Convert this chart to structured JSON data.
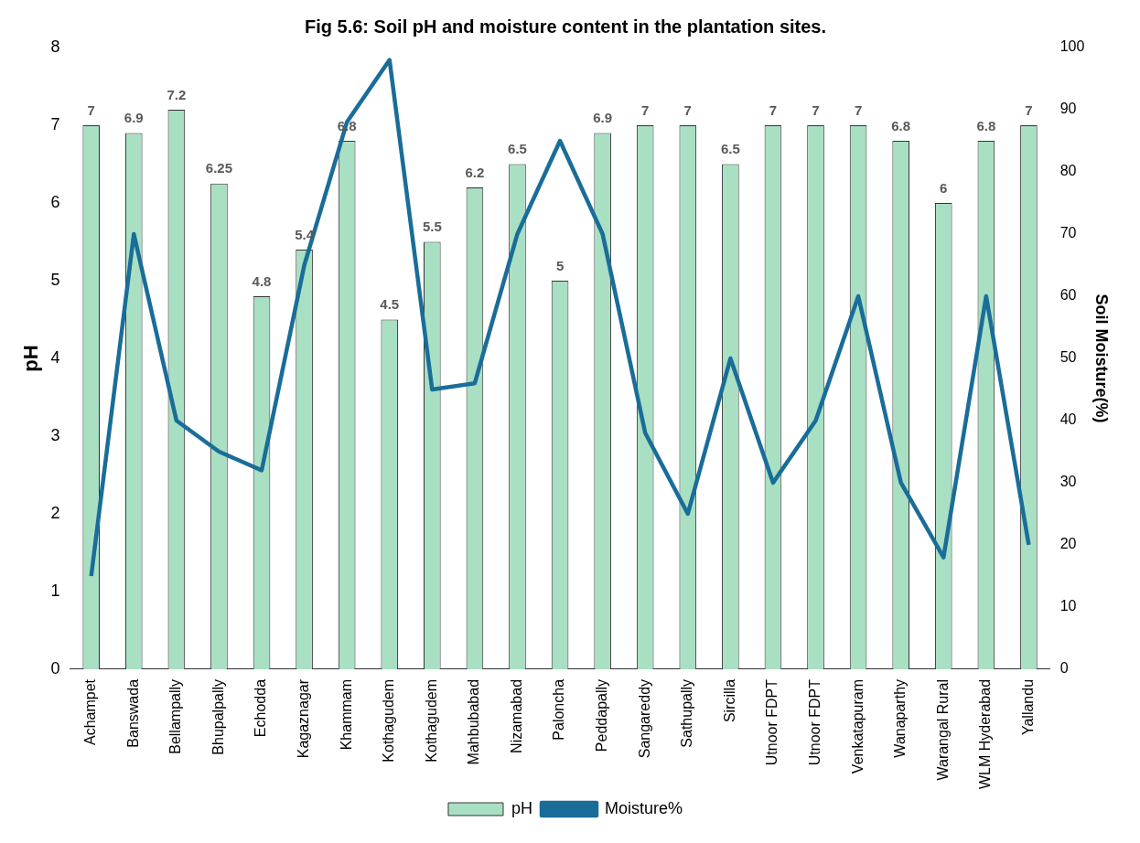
{
  "chart_data": {
    "type": "bar",
    "title": "Fig 5.6: Soil pH and moisture content in the plantation sites.",
    "categories": [
      "Achampet",
      "Banswada",
      "Bellampally",
      "Bhupalpally",
      "Echodda",
      "Kagaznagar",
      "Khammam",
      "Kothagudem",
      "Kothagudem",
      "Mahbubabad",
      "Nizamabad",
      "Paloncha",
      "Peddapally",
      "Sangareddy",
      "Sathupally",
      "Sircilla",
      "Utnoor FDPT",
      "Utnoor FDPT",
      "Venkatapuram",
      "Wanaparthy",
      "Warangal Rural",
      "WLM Hyderabad",
      "Yallandu"
    ],
    "series": [
      {
        "name": "pH",
        "color": "#a9e0c3",
        "values": [
          7,
          6.9,
          7.2,
          6.25,
          4.8,
          5.4,
          6.8,
          4.5,
          5.5,
          6.2,
          6.5,
          5,
          6.9,
          7,
          7,
          6.5,
          7,
          7,
          7,
          6.8,
          6,
          6.8,
          7
        ],
        "value_labels": [
          "7",
          "6.9",
          "7.2",
          "6.25",
          "4.8",
          "5.4",
          "6.8",
          "4.5",
          "5.5",
          "6.2",
          "6.5",
          "5",
          "6.9",
          "7",
          "7",
          "6.5",
          "7",
          "7",
          "7",
          "6.8",
          "6",
          "6.8",
          "7"
        ]
      },
      {
        "name": "Moisture%",
        "type": "line",
        "axis": "y2",
        "color": "#1a6d99",
        "values": [
          15,
          70,
          40,
          35,
          32,
          65,
          88,
          98,
          45,
          46,
          70,
          85,
          70,
          38,
          25,
          50,
          30,
          40,
          60,
          30,
          18,
          60,
          20
        ]
      }
    ],
    "ylabel": "pH",
    "y2label": "Soil Moisture(%)",
    "ylim": [
      0,
      8
    ],
    "yticks": [
      0,
      1,
      2,
      3,
      4,
      5,
      6,
      7,
      8
    ],
    "y2lim": [
      0,
      100
    ],
    "y2ticks": [
      0,
      10,
      20,
      30,
      40,
      50,
      60,
      70,
      80,
      90,
      100
    ],
    "legend": "bottom",
    "grid": false
  }
}
